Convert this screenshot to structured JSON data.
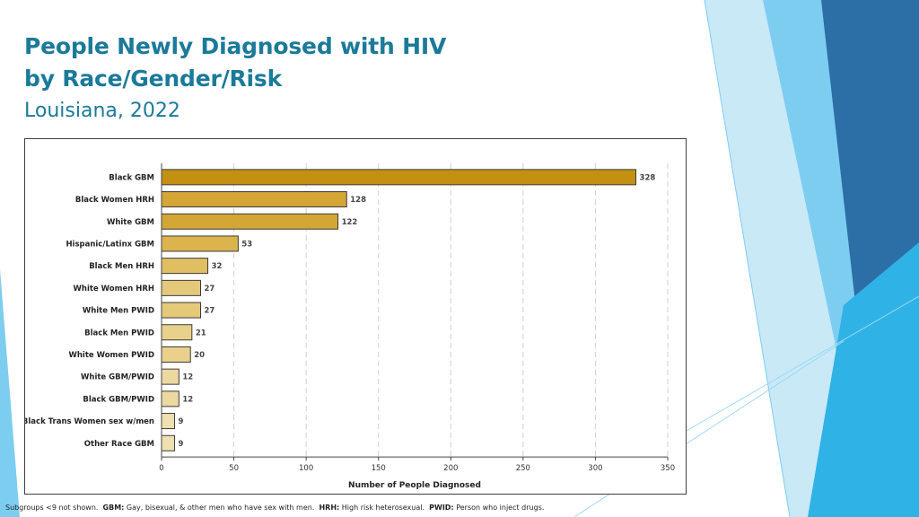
{
  "title": {
    "line1": "People Newly Diagnosed with HIV",
    "line2": "by Race/Gender/Risk",
    "subtitle": "Louisiana, 2022"
  },
  "chart_data": {
    "type": "bar",
    "orientation": "horizontal",
    "categories": [
      "Black GBM",
      "Black Women HRH",
      "White GBM",
      "Hispanic/Latinx GBM",
      "Black Men HRH",
      "White Women HRH",
      "White Men PWID",
      "Black Men PWID",
      "White Women PWID",
      "White GBM/PWID",
      "Black GBM/PWID",
      "Black Trans Women sex w/men",
      "Other Race GBM"
    ],
    "values": [
      328,
      128,
      122,
      53,
      32,
      27,
      27,
      21,
      20,
      12,
      12,
      9,
      9
    ],
    "xlabel": "Number of People Diagnosed",
    "ylabel": "",
    "xlim": [
      0,
      350
    ],
    "xticks": [
      0,
      50,
      100,
      150,
      200,
      250,
      300,
      350
    ],
    "grid": "vertical dashed",
    "bar_colors": [
      "#c39012",
      "#d3a635",
      "#d3a635",
      "#dcb44e",
      "#e0bf63",
      "#e5c97b",
      "#e5c97b",
      "#e9d18c",
      "#e9d18c",
      "#edd9a0",
      "#edd9a0",
      "#f0e0b1",
      "#f0e0b1"
    ]
  },
  "footnote": {
    "prefix": "Subgroups <9 not shown.",
    "gbm_term": "GBM:",
    "gbm_def": "Gay, bisexual, & other men who have sex with men.",
    "hrh_term": "HRH:",
    "hrh_def": "High risk heterosexual.",
    "pwid_term": "PWID:",
    "pwid_def": "Person who inject drugs."
  },
  "theme": {
    "title_color": "#1b7a9a",
    "accent_light": "#8fd1ee",
    "accent_mid": "#2bb0e3",
    "accent_dark": "#2a6fa5"
  }
}
